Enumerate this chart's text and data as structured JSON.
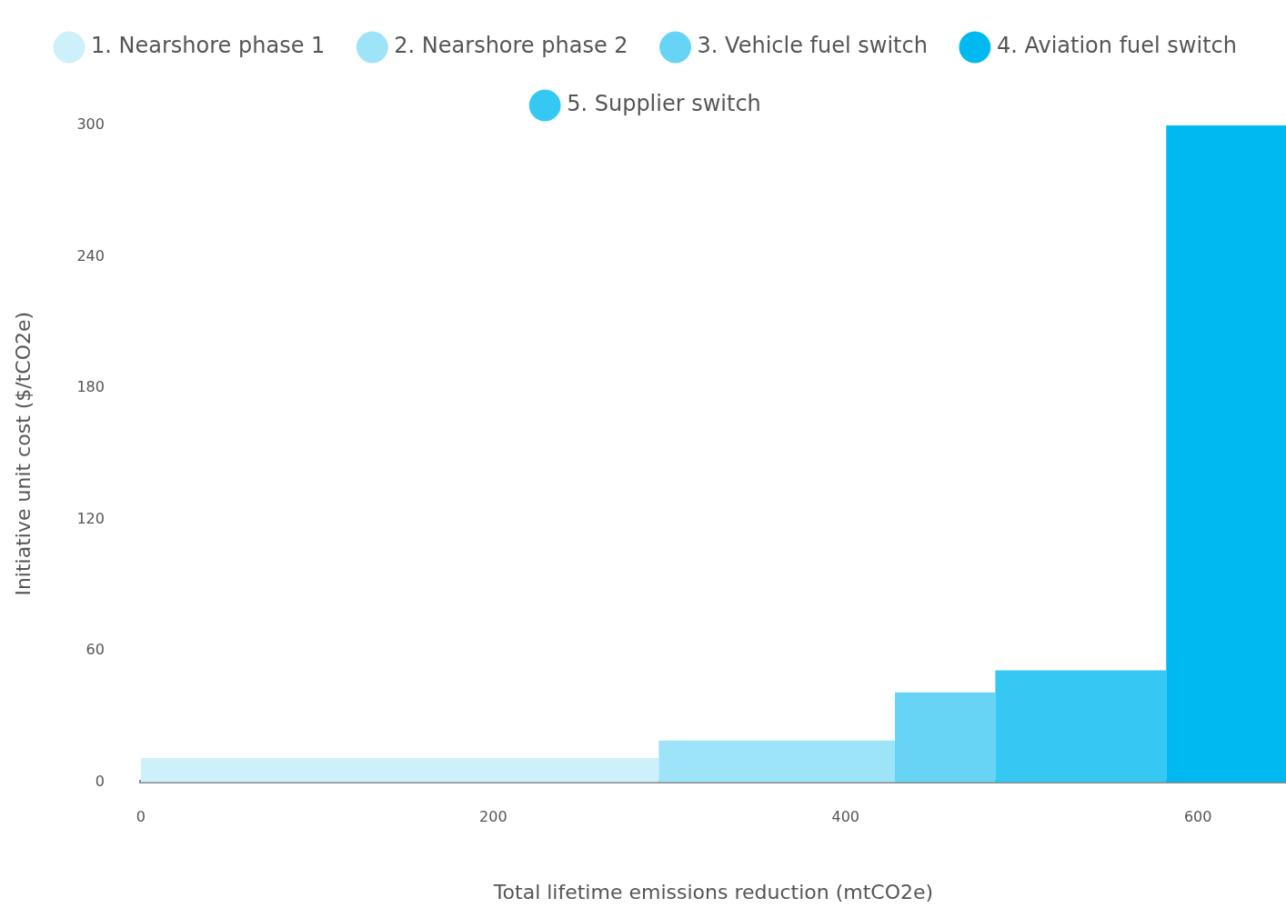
{
  "chart_data": {
    "type": "histogram",
    "xlabel": "Total lifetime emissions reduction (mtCO2e)",
    "ylabel": "Initiative unit cost ($/tCO2e)",
    "bins": [
      0,
      294,
      428,
      485,
      582,
      650
    ],
    "xlim": [
      0,
      650
    ],
    "xticks": [
      0,
      200,
      400,
      600
    ],
    "ylim": [
      0,
      300
    ],
    "yticks": [
      0,
      60,
      120,
      180,
      240,
      300
    ],
    "legend": "top",
    "series": [
      {
        "name": "1. Nearshore phase 1",
        "color": "#cdf0fb",
        "values": [
          11,
          null,
          null,
          null,
          null
        ]
      },
      {
        "name": "2. Nearshore phase 2",
        "color": "#9de4f8",
        "values": [
          null,
          19,
          null,
          null,
          null
        ]
      },
      {
        "name": "3. Vehicle fuel switch",
        "color": "#67d4f5",
        "values": [
          null,
          null,
          41,
          null,
          null
        ]
      },
      {
        "name": "4. Aviation fuel switch",
        "color": "#00b9f0",
        "values": [
          null,
          null,
          null,
          null,
          300
        ]
      },
      {
        "name": "5. Supplier switch",
        "color": "#34c8f2",
        "values": [
          null,
          null,
          null,
          51,
          null
        ]
      }
    ]
  }
}
